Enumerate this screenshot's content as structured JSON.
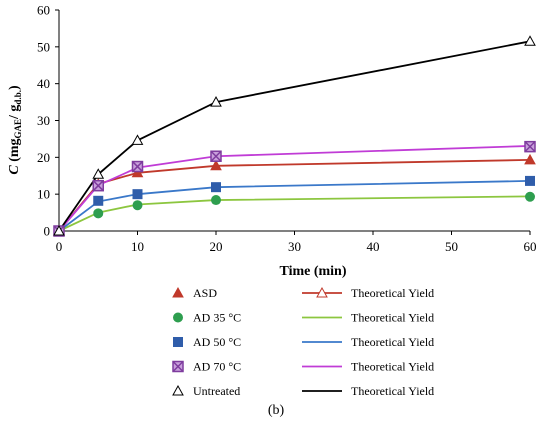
{
  "chart_data": {
    "type": "line",
    "xlabel": "Time (min)",
    "ylabel": {
      "main": "C",
      "unit_open": " (mg",
      "unit_sub1": "GAE",
      "unit_mid": "/ g",
      "unit_sub2": "d.b.",
      "unit_close": ")"
    },
    "xlim": [
      0,
      60
    ],
    "ylim": [
      0,
      60
    ],
    "xticks": [
      0,
      10,
      20,
      30,
      40,
      50,
      60
    ],
    "yticks": [
      0,
      10,
      20,
      30,
      40,
      50,
      60
    ],
    "grid": false,
    "caption": "(b)",
    "series": [
      {
        "name": "ASD",
        "marker": "triangle-filled",
        "marker_color": "#C0392B",
        "x": [
          0,
          5,
          10,
          20,
          60
        ],
        "y": [
          0,
          12.7,
          15.8,
          17.7,
          19.3
        ],
        "line_name": "Theoretical Yield",
        "line_color": "#C0392B",
        "line_x": [
          0,
          5,
          10,
          20,
          60
        ],
        "line_y": [
          0,
          12.8,
          15.8,
          17.7,
          19.3
        ]
      },
      {
        "name": "AD 35 °C",
        "marker": "circle-filled",
        "marker_color": "#2E9E4F",
        "x": [
          0,
          5,
          10,
          20,
          60
        ],
        "y": [
          0,
          4.8,
          7.0,
          8.4,
          9.3
        ],
        "line_name": "Theoretical Yield",
        "line_color": "#8CC63F",
        "line_x": [
          0,
          5,
          10,
          20,
          60
        ],
        "line_y": [
          0,
          5.0,
          7.2,
          8.4,
          9.4
        ]
      },
      {
        "name": "AD 50 °C",
        "marker": "square-filled",
        "marker_color": "#2F5DAA",
        "x": [
          0,
          5,
          10,
          20,
          60
        ],
        "y": [
          0,
          8.2,
          10.0,
          11.9,
          13.6
        ],
        "line_name": "Theoretical Yield",
        "line_color": "#3A78C9",
        "line_x": [
          0,
          5,
          10,
          20,
          60
        ],
        "line_y": [
          0,
          8.0,
          10.0,
          11.9,
          13.6
        ]
      },
      {
        "name": "AD 70 °C",
        "marker": "square-x",
        "marker_color": "#7E3C9E",
        "x": [
          0,
          5,
          10,
          20,
          60
        ],
        "y": [
          0,
          12.3,
          17.5,
          20.3,
          22.9
        ],
        "line_name": "Theoretical Yield",
        "line_color": "#C03CD6",
        "line_x": [
          0,
          5,
          10,
          20,
          60
        ],
        "line_y": [
          0,
          12.4,
          17.2,
          20.3,
          23.1
        ]
      },
      {
        "name": "Untreated",
        "marker": "triangle-open",
        "marker_color": "#000000",
        "x": [
          0,
          5,
          10,
          20,
          60
        ],
        "y": [
          0,
          15.4,
          24.6,
          35.0,
          51.5
        ],
        "line_name": "Theoretical Yield",
        "line_color": "#000000",
        "line_x": [
          0,
          5,
          10,
          20,
          60
        ],
        "line_y": [
          0,
          15.4,
          24.6,
          35.0,
          51.5
        ]
      }
    ]
  }
}
